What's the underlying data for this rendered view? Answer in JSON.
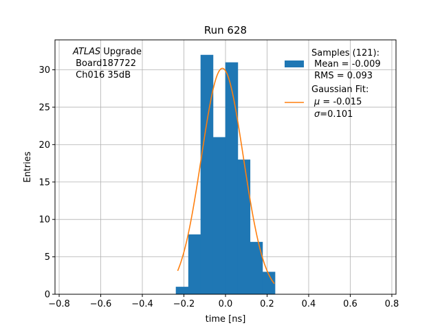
{
  "chart_data": {
    "type": "bar",
    "title": "Run 628",
    "xlabel": "time [ns]",
    "ylabel": "Entries",
    "xlim": [
      -0.82,
      0.82
    ],
    "ylim": [
      0,
      34
    ],
    "grid": true,
    "xticks": [
      -0.8,
      -0.6,
      -0.4,
      -0.2,
      0.0,
      0.2,
      0.4,
      0.6,
      0.8
    ],
    "xtick_labels": [
      "−0.8",
      "−0.6",
      "−0.4",
      "−0.2",
      "0.0",
      "0.2",
      "0.4",
      "0.6",
      "0.8"
    ],
    "yticks": [
      0,
      5,
      10,
      15,
      20,
      25,
      30
    ],
    "ytick_labels": [
      "0",
      "5",
      "10",
      "15",
      "20",
      "25",
      "30"
    ],
    "bin_edges": [
      -0.239,
      -0.179,
      -0.12,
      -0.06,
      -0.001,
      0.059,
      0.118,
      0.178,
      0.238
    ],
    "counts": [
      1,
      8,
      32,
      21,
      31,
      18,
      7,
      3
    ],
    "annotation": {
      "italic_part": "ATLAS",
      "rest_line1": " Upgrade",
      "line2": " Board187722",
      "line3": " Ch016 35dB"
    },
    "legend": {
      "position": "top-right",
      "hist_lines": [
        "Samples (121):",
        " Mean = -0.009",
        " RMS = 0.093"
      ],
      "fit_title": "Gaussian Fit:",
      "fit_mu_symbol": "μ",
      "fit_mu_value": " = -0.015",
      "fit_sigma_symbol": "σ",
      "fit_sigma_value": "=0.101"
    },
    "series": [
      {
        "name": "Samples (121)",
        "color": "#1f77b4"
      },
      {
        "name": "Gaussian Fit",
        "color": "#ff7f0e",
        "fit": {
          "amplitude": 30.2,
          "mu": -0.015,
          "sigma": 0.101,
          "x_range": [
            -0.23,
            0.235
          ]
        }
      }
    ]
  }
}
